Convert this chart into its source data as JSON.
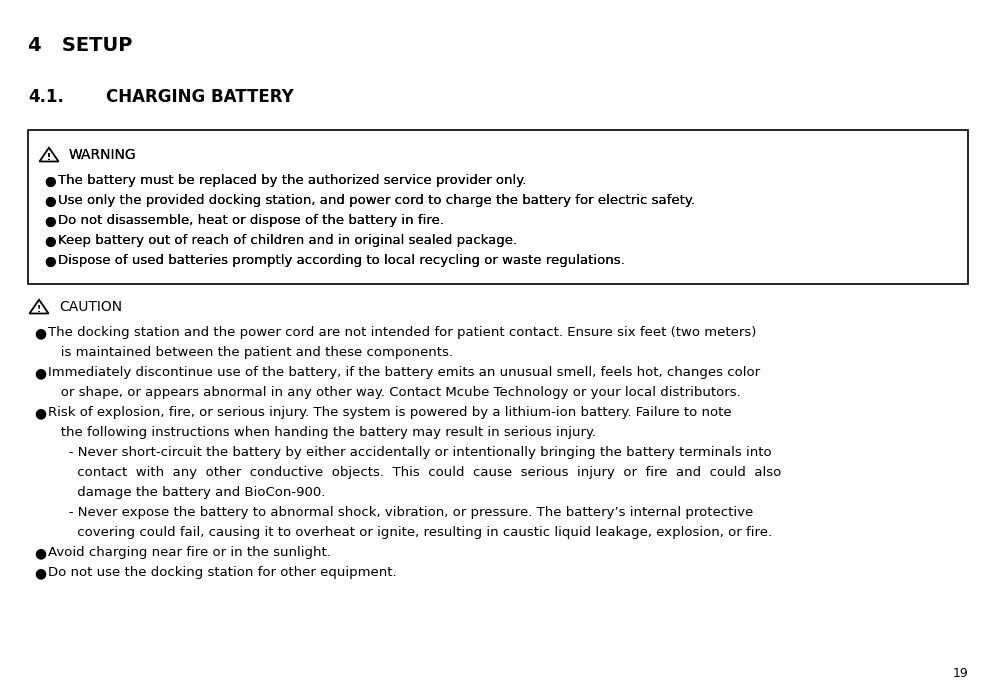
{
  "bg_color": "#ffffff",
  "title": "4   SETUP",
  "subtitle_num": "4.1.",
  "subtitle_tab": "        ",
  "subtitle_text": "CHARGING BATTERY",
  "page_number": "19",
  "warning_header": "WARNING",
  "warning_bullets": [
    "The battery must be replaced by the authorized service provider only.",
    "Use only the provided docking station, and power cord to charge the battery for electric safety.",
    "Do not disassemble, heat or dispose of the battery in fire.",
    "Keep battery out of reach of children and in original sealed package.",
    "Dispose of used batteries promptly according to local recycling or waste regulations."
  ],
  "caution_header": "CAUTION",
  "caution_items": [
    {
      "type": "bullet",
      "lines": [
        "The docking station and the power cord are not intended for patient contact. Ensure six feet (two meters)",
        "   is maintained between the patient and these components."
      ]
    },
    {
      "type": "bullet",
      "lines": [
        "Immediately discontinue use of the battery, if the battery emits an unusual smell, feels hot, changes color",
        "   or shape, or appears abnormal in any other way. Contact Mcube Technology or your local distributors."
      ]
    },
    {
      "type": "bullet",
      "lines": [
        "Risk of explosion, fire, or serious injury. The system is powered by a lithium-ion battery. Failure to note",
        "   the following instructions when handing the battery may result in serious injury."
      ]
    },
    {
      "type": "sub",
      "lines": [
        "   - Never short-circuit the battery by either accidentally or intentionally bringing the battery terminals into",
        "     contact  with  any  other  conductive  objects.  This  could  cause  serious  injury  or  fire  and  could  also",
        "     damage the battery and BioCon-900."
      ]
    },
    {
      "type": "sub",
      "lines": [
        "   - Never expose the battery to abnormal shock, vibration, or pressure. The battery’s internal protective",
        "     covering could fail, causing it to overheat or ignite, resulting in caustic liquid leakage, explosion, or fire."
      ]
    },
    {
      "type": "bullet",
      "lines": [
        "Avoid charging near fire or in the sunlight."
      ]
    },
    {
      "type": "bullet",
      "lines": [
        "Do not use the docking station for other equipment."
      ]
    }
  ],
  "fs_title": 14,
  "fs_subtitle": 12,
  "fs_body": 9.5,
  "fs_page": 9,
  "fs_header": 10
}
